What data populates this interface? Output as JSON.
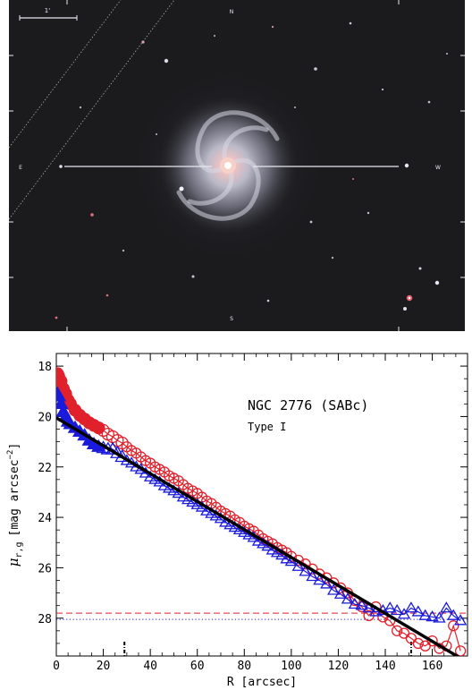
{
  "galaxy_image": {
    "scale_bar_label": "1'",
    "compass": {
      "north": "N",
      "south": "S",
      "east": "E",
      "west": "W"
    },
    "colors": {
      "sky": "#1b1b1e",
      "disk": "#c9c9d8",
      "core": "#f4c8c0"
    }
  },
  "chart_data": {
    "type": "scatter",
    "title": "NGC 2776 (SABc)",
    "subtitle": "Type I",
    "xlabel": "R [arcsec]",
    "ylabel_main": "μ",
    "ylabel_sub": "r,g",
    "ylabel_rest": "[mag arcsec",
    "ylabel_exp": "−2",
    "ylabel_close": "]",
    "xlim": [
      0,
      175
    ],
    "ylim": [
      29.5,
      17.5
    ],
    "x_ticks": [
      0,
      20,
      40,
      60,
      80,
      100,
      120,
      140,
      160
    ],
    "y_ticks": [
      18,
      20,
      22,
      24,
      26,
      28
    ],
    "x_tick_labels": [
      "0",
      "20",
      "40",
      "60",
      "80",
      "100",
      "120",
      "140",
      "160"
    ],
    "y_tick_labels": [
      "18",
      "20",
      "22",
      "24",
      "26",
      "28"
    ],
    "markers": [
      29,
      151
    ],
    "fit": {
      "x": [
        0,
        175
      ],
      "y": [
        20.05,
        29.75
      ]
    },
    "limits": [
      {
        "name": "r-band limit",
        "y": 27.8,
        "color": "#e0202a",
        "style": "dashed"
      },
      {
        "name": "g-band limit",
        "y": 28.05,
        "color": "#1a1adc",
        "style": "dotted"
      }
    ],
    "series": [
      {
        "band": "r",
        "color": "#e0202a",
        "marker": "circle",
        "x": [
          0.5,
          1,
          2,
          3,
          4,
          5,
          6,
          8,
          10,
          12,
          14,
          16,
          18,
          20,
          22,
          24,
          26,
          28,
          30,
          32,
          34,
          36,
          38,
          40,
          42,
          44,
          46,
          48,
          50,
          52,
          54,
          56,
          58,
          60,
          62,
          64,
          66,
          68,
          70,
          72,
          74,
          76,
          78,
          80,
          82,
          84,
          86,
          88,
          90,
          92,
          94,
          96,
          98,
          100,
          103,
          106,
          109,
          112,
          115,
          118,
          121,
          124,
          127,
          130,
          133,
          136,
          139,
          142,
          145,
          148,
          151,
          154,
          157,
          160,
          163,
          166,
          169,
          172
        ],
        "y": [
          18.3,
          18.4,
          18.6,
          18.9,
          19.1,
          19.35,
          19.5,
          19.75,
          19.95,
          20.1,
          20.25,
          20.35,
          20.45,
          20.55,
          20.7,
          20.8,
          20.95,
          21.05,
          21.2,
          21.35,
          21.45,
          21.6,
          21.75,
          21.85,
          22.0,
          22.1,
          22.2,
          22.35,
          22.45,
          22.55,
          22.7,
          22.85,
          22.95,
          23.05,
          23.2,
          23.35,
          23.45,
          23.6,
          23.75,
          23.85,
          23.95,
          24.1,
          24.2,
          24.35,
          24.45,
          24.55,
          24.7,
          24.85,
          24.95,
          25.05,
          25.2,
          25.3,
          25.4,
          25.55,
          25.7,
          25.85,
          26.05,
          26.25,
          26.4,
          26.6,
          26.8,
          27.0,
          27.3,
          27.55,
          27.9,
          27.55,
          27.95,
          28.1,
          28.5,
          28.6,
          28.8,
          29.0,
          29.1,
          28.9,
          29.2,
          29.1,
          28.3,
          29.3
        ]
      },
      {
        "band": "g",
        "color": "#1a1adc",
        "marker": "triangle",
        "x": [
          0.5,
          1,
          2,
          3,
          4,
          5,
          6,
          8,
          10,
          12,
          14,
          16,
          18,
          20,
          22,
          24,
          26,
          28,
          30,
          32,
          34,
          36,
          38,
          40,
          42,
          44,
          46,
          48,
          50,
          52,
          54,
          56,
          58,
          60,
          62,
          64,
          66,
          68,
          70,
          72,
          74,
          76,
          78,
          80,
          82,
          84,
          86,
          88,
          90,
          92,
          94,
          96,
          98,
          100,
          103,
          106,
          109,
          112,
          115,
          118,
          121,
          124,
          127,
          130,
          133,
          136,
          139,
          142,
          145,
          148,
          151,
          154,
          157,
          160,
          163,
          166,
          169,
          172
        ],
        "y": [
          19.1,
          19.2,
          19.5,
          19.8,
          20.0,
          20.2,
          20.3,
          20.45,
          20.6,
          20.75,
          20.95,
          21.1,
          21.2,
          21.25,
          21.3,
          21.3,
          21.45,
          21.6,
          21.75,
          21.85,
          22.0,
          22.1,
          22.25,
          22.4,
          22.5,
          22.6,
          22.75,
          22.85,
          22.95,
          23.05,
          23.2,
          23.3,
          23.4,
          23.5,
          23.6,
          23.75,
          23.85,
          23.95,
          24.05,
          24.2,
          24.3,
          24.4,
          24.5,
          24.6,
          24.7,
          24.8,
          24.95,
          25.05,
          25.15,
          25.3,
          25.4,
          25.5,
          25.65,
          25.75,
          25.95,
          26.15,
          26.35,
          26.5,
          26.65,
          26.9,
          27.05,
          27.25,
          27.45,
          27.5,
          27.6,
          27.75,
          27.7,
          27.6,
          27.7,
          27.85,
          27.6,
          27.75,
          27.9,
          27.95,
          28.0,
          27.6,
          27.9,
          28.1
        ]
      }
    ]
  }
}
